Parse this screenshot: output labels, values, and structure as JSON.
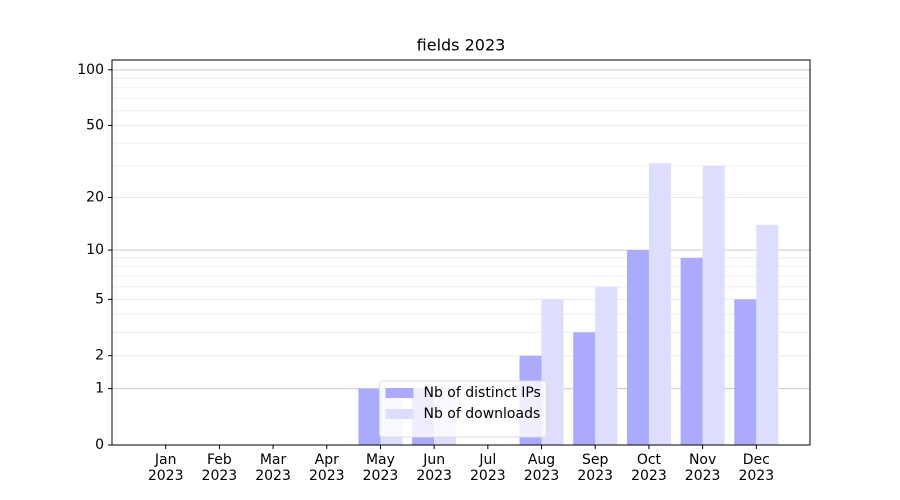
{
  "chart_data": {
    "type": "bar",
    "title": "fields 2023",
    "categories": [
      "Jan\n2023",
      "Feb\n2023",
      "Mar\n2023",
      "Apr\n2023",
      "May\n2023",
      "Jun\n2023",
      "Jul\n2023",
      "Aug\n2023",
      "Sep\n2023",
      "Oct\n2023",
      "Nov\n2023",
      "Dec\n2023"
    ],
    "series": [
      {
        "name": "Nb of distinct IPs",
        "color": "#aaaaff",
        "values": [
          0,
          0,
          0,
          0,
          1,
          1,
          0,
          2,
          3,
          10,
          9,
          5
        ]
      },
      {
        "name": "Nb of downloads",
        "color": "#ddddff",
        "values": [
          0,
          0,
          0,
          0,
          1,
          1,
          0,
          5,
          6,
          31,
          30,
          14
        ]
      }
    ],
    "yscale": "log1p",
    "ylim": [
      0,
      113
    ],
    "yticks": [
      0,
      1,
      2,
      5,
      10,
      20,
      50,
      100
    ],
    "y_minor_ticks": [
      3,
      4,
      6,
      7,
      8,
      9,
      30,
      40,
      60,
      70,
      80,
      90
    ],
    "grid": true,
    "legend": "lower center"
  }
}
